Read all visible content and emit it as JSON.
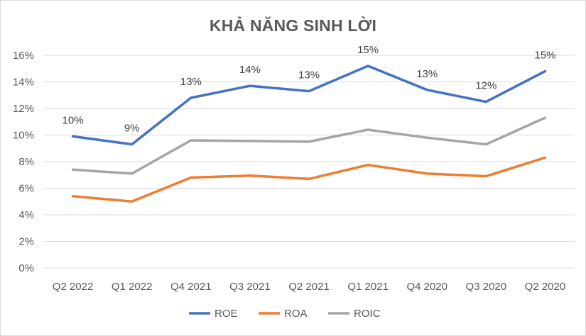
{
  "chart_data": {
    "type": "line",
    "title": "KHẢ NĂNG SINH LỜI",
    "categories": [
      "Q2 2022",
      "Q1 2022",
      "Q4 2021",
      "Q3 2021",
      "Q2 2021",
      "Q1 2021",
      "Q4 2020",
      "Q3 2020",
      "Q2 2020"
    ],
    "y_ticks": [
      "0%",
      "2%",
      "4%",
      "6%",
      "8%",
      "10%",
      "12%",
      "14%",
      "16%"
    ],
    "ylim": [
      0,
      16
    ],
    "grid": true,
    "legend_position": "bottom",
    "series": [
      {
        "name": "ROE",
        "color": "#4472c4",
        "values": [
          9.9,
          9.3,
          12.8,
          13.7,
          13.3,
          15.2,
          13.4,
          12.5,
          14.8
        ],
        "data_labels": [
          "10%",
          "9%",
          "13%",
          "14%",
          "13%",
          "15%",
          "13%",
          "12%",
          "15%"
        ]
      },
      {
        "name": "ROA",
        "color": "#ed7d31",
        "values": [
          5.4,
          5.0,
          6.8,
          6.95,
          6.7,
          7.75,
          7.1,
          6.9,
          8.3
        ]
      },
      {
        "name": "ROIC",
        "color": "#a5a5a5",
        "values": [
          7.4,
          7.1,
          9.6,
          9.55,
          9.5,
          10.4,
          9.8,
          9.3,
          11.3
        ]
      }
    ]
  }
}
